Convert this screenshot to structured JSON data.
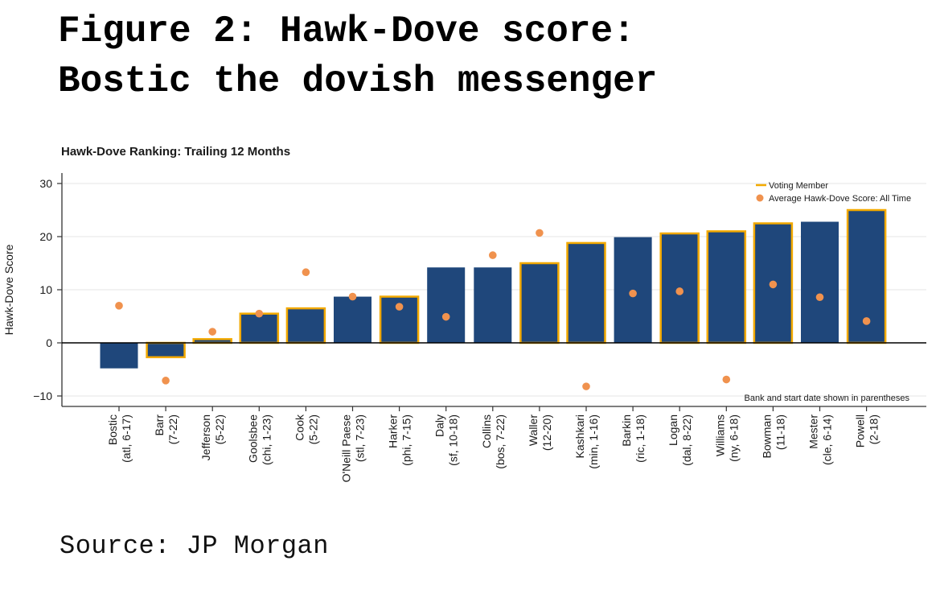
{
  "headline": {
    "line1": "Figure 2: Hawk-Dove score:",
    "line2": "Bostic the dovish messenger"
  },
  "source": "Source: JP Morgan",
  "colors": {
    "bar": "#1f477b",
    "voting_outline": "#f2a900",
    "dot": "#f0924e",
    "axis": "#333333",
    "grid": "#e6e6e6"
  },
  "chart_data": {
    "type": "bar",
    "title": "Hawk-Dove Ranking: Trailing 12 Months",
    "xlabel": "",
    "ylabel": "Hawk-Dove Score",
    "ylim": [
      -12,
      32
    ],
    "yticks": [
      -10,
      0,
      10,
      20,
      30
    ],
    "grid": true,
    "legend_position": "top-right",
    "legend": [
      "Voting Member",
      "Average Hawk-Dove Score: All Time"
    ],
    "annotation": "Bank and start date shown in parentheses",
    "categories": [
      [
        "Bostic",
        "(atl, 6-17)"
      ],
      [
        "Barr",
        "(7-22)"
      ],
      [
        "Jefferson",
        "(5-22)"
      ],
      [
        "Goolsbee",
        "(chi, 1-23)"
      ],
      [
        "Cook",
        "(5-22)"
      ],
      [
        "O'Neill Paese",
        "(stl, 7-23)"
      ],
      [
        "Harker",
        "(phi, 7-15)"
      ],
      [
        "Daly",
        "(sf, 10-18)"
      ],
      [
        "Collins",
        "(bos, 7-22)"
      ],
      [
        "Waller",
        "(12-20)"
      ],
      [
        "Kashkari",
        "(min, 1-16)"
      ],
      [
        "Barkin",
        "(ric, 1-18)"
      ],
      [
        "Logan",
        "(dal, 8-22)"
      ],
      [
        "Williams",
        "(ny, 6-18)"
      ],
      [
        "Bowman",
        "(11-18)"
      ],
      [
        "Mester",
        "(cle, 6-14)"
      ],
      [
        "Powell",
        "(2-18)"
      ]
    ],
    "series": [
      {
        "name": "Hawk-Dove Ranking: Trailing 12 Months",
        "values": [
          -4.8,
          -2.7,
          0.7,
          5.5,
          6.5,
          8.7,
          8.7,
          14.2,
          14.2,
          15.0,
          18.8,
          19.9,
          20.6,
          21.0,
          22.5,
          22.8,
          25.0
        ]
      },
      {
        "name": "Average Hawk-Dove Score: All Time",
        "values": [
          7.0,
          -7.1,
          2.1,
          5.5,
          13.3,
          8.7,
          6.8,
          4.9,
          16.5,
          20.7,
          -8.2,
          9.3,
          9.7,
          -6.9,
          11.0,
          8.6,
          4.1
        ]
      }
    ],
    "voting_member": [
      false,
      true,
      true,
      true,
      true,
      false,
      true,
      false,
      false,
      true,
      true,
      false,
      true,
      true,
      true,
      false,
      true
    ]
  }
}
